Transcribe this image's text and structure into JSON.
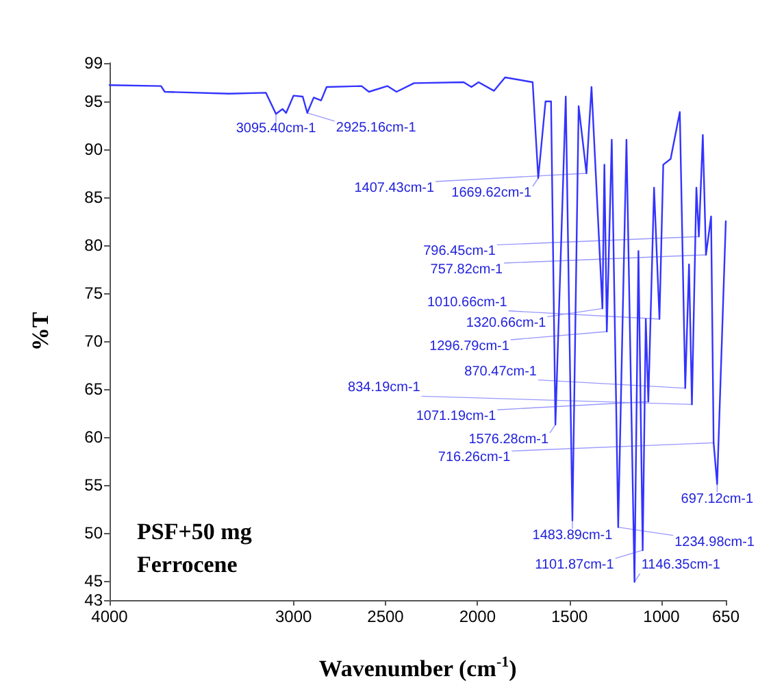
{
  "chart_data": {
    "type": "line",
    "xlabel": "Wavenumber (cm$^{-1}$)",
    "ylabel": "%T",
    "xlim": [
      4000,
      650
    ],
    "xticks": [
      4000,
      3000,
      2500,
      2000,
      1500,
      1000,
      650
    ],
    "ylim": [
      43,
      99
    ],
    "yticks": [
      43,
      45,
      50,
      55,
      60,
      65,
      70,
      75,
      80,
      85,
      90,
      95,
      99
    ],
    "grid": false,
    "marker": "none",
    "line_style": "solid",
    "series": [
      {
        "color": "#3333ff",
        "x": [
          4000,
          3720,
          3700,
          3350,
          3150,
          3095.4,
          3060,
          3040,
          3000,
          2950,
          2925.16,
          2890,
          2850,
          2820,
          2630,
          2590,
          2490,
          2440,
          2345,
          2075,
          2033,
          1994,
          1910,
          1850,
          1700,
          1669.62,
          1630,
          1600,
          1576.28,
          1520,
          1483.89,
          1450,
          1407.43,
          1395,
          1380,
          1320.66,
          1310,
          1296.79,
          1270,
          1234.98,
          1190,
          1146.35,
          1125,
          1101.87,
          1085,
          1071.19,
          1040,
          1010.66,
          990,
          950,
          900,
          870.47,
          850,
          834.19,
          810,
          796.45,
          775,
          757.82,
          730,
          716.26,
          697.12,
          650
        ],
        "values": [
          96.7,
          96.6,
          96.0,
          95.8,
          95.9,
          93.7,
          94.2,
          93.8,
          95.6,
          95.5,
          93.8,
          95.4,
          95.1,
          96.5,
          96.6,
          96.0,
          96.6,
          96.0,
          96.9,
          97.0,
          96.5,
          97.0,
          96.1,
          97.5,
          97.0,
          87.0,
          95.0,
          95.0,
          61.3,
          95.5,
          51.3,
          94.5,
          87.5,
          91.8,
          96.5,
          73.4,
          88.4,
          71.0,
          91.0,
          50.6,
          91.0,
          44.9,
          79.4,
          48.2,
          72.3,
          63.7,
          86.0,
          72.3,
          88.4,
          89.0,
          93.9,
          65.1,
          78.0,
          63.4,
          86.0,
          80.9,
          91.5,
          79.0,
          83.0,
          59.4,
          55.1,
          82.5
        ]
      }
    ],
    "annotations": [
      "PSF+50 mg\nFerrocene",
      {
        "text": "3095.40cm-1",
        "x": 3095.4,
        "y": 93.7
      },
      {
        "text": "2925.16cm-1",
        "x": 2925.16,
        "y": 93.8
      },
      {
        "text": "1669.62cm-1",
        "x": 1669.62,
        "y": 87.0
      },
      {
        "text": "1407.43cm-1",
        "x": 1407.43,
        "y": 87.5
      },
      {
        "text": "1576.28cm-1",
        "x": 1576.28,
        "y": 61.3
      },
      {
        "text": "1483.89cm-1",
        "x": 1483.89,
        "y": 51.3
      },
      {
        "text": "1320.66cm-1",
        "x": 1320.66,
        "y": 73.4
      },
      {
        "text": "1296.79cm-1",
        "x": 1296.79,
        "y": 71.0
      },
      {
        "text": "1234.98cm-1",
        "x": 1234.98,
        "y": 50.6
      },
      {
        "text": "1146.35cm-1",
        "x": 1146.35,
        "y": 44.9
      },
      {
        "text": "1101.87cm-1",
        "x": 1101.87,
        "y": 48.2
      },
      {
        "text": "1071.19cm-1",
        "x": 1071.19,
        "y": 63.7
      },
      {
        "text": "1010.66cm-1",
        "x": 1010.66,
        "y": 72.3
      },
      {
        "text": "870.47cm-1",
        "x": 870.47,
        "y": 65.1
      },
      {
        "text": "834.19cm-1",
        "x": 834.19,
        "y": 63.4
      },
      {
        "text": "796.45cm-1",
        "x": 796.45,
        "y": 80.9
      },
      {
        "text": "757.82cm-1",
        "x": 757.82,
        "y": 79.0
      },
      {
        "text": "716.26cm-1",
        "x": 716.26,
        "y": 59.4
      },
      {
        "text": "697.12cm-1",
        "x": 697.12,
        "y": 55.1
      }
    ]
  }
}
